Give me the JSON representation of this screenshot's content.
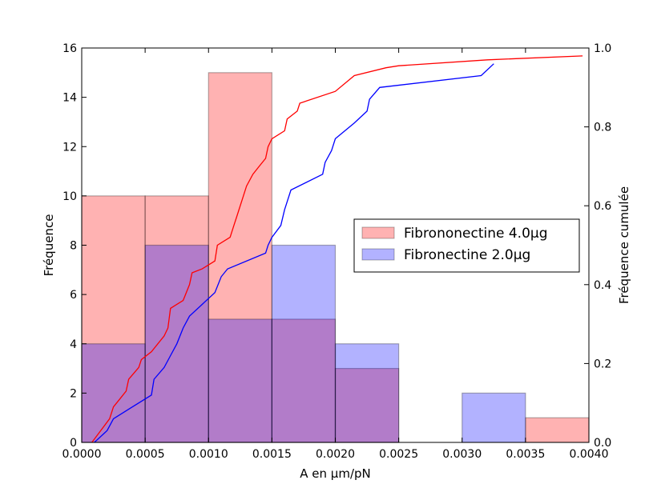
{
  "chart_data": {
    "type": "bar",
    "xlabel": "A en µm/pN",
    "ylabel": "Fréquence",
    "ylabel_right": "Fréquence cumulée",
    "xlim": [
      0.0,
      0.004
    ],
    "ylim": [
      0,
      16
    ],
    "ylim_right": [
      0.0,
      1.0
    ],
    "x_ticks": [
      "0.0000",
      "0.0005",
      "0.0010",
      "0.0015",
      "0.0020",
      "0.0025",
      "0.0030",
      "0.0035",
      "0.0040"
    ],
    "y_ticks": [
      "0",
      "2",
      "4",
      "6",
      "8",
      "10",
      "12",
      "14",
      "16"
    ],
    "y_ticks_right": [
      "0.0",
      "0.2",
      "0.4",
      "0.6",
      "0.8",
      "1.0"
    ],
    "bin_edges": [
      0.0,
      0.0005,
      0.001,
      0.0015,
      0.002,
      0.0025,
      0.003,
      0.0035,
      0.004
    ],
    "legend_position": "center-right",
    "series": [
      {
        "name": "Fibrononectine 4.0µg",
        "color": "#ff0000",
        "counts": [
          10,
          10,
          15,
          5,
          3,
          0,
          0,
          1
        ],
        "cumulative": [
          [
            8e-05,
            0.0
          ],
          [
            0.00022,
            0.06
          ],
          [
            0.00025,
            0.09
          ],
          [
            0.0003,
            0.11
          ],
          [
            0.00035,
            0.13
          ],
          [
            0.00037,
            0.16
          ],
          [
            0.00045,
            0.19
          ],
          [
            0.00047,
            0.21
          ],
          [
            0.00055,
            0.23
          ],
          [
            0.00065,
            0.27
          ],
          [
            0.00068,
            0.29
          ],
          [
            0.0007,
            0.34
          ],
          [
            0.0008,
            0.36
          ],
          [
            0.00085,
            0.4
          ],
          [
            0.00087,
            0.43
          ],
          [
            0.00095,
            0.44
          ],
          [
            0.00105,
            0.46
          ],
          [
            0.00107,
            0.5
          ],
          [
            0.00117,
            0.52
          ],
          [
            0.0012,
            0.55
          ],
          [
            0.00122,
            0.57
          ],
          [
            0.00127,
            0.62
          ],
          [
            0.0013,
            0.65
          ],
          [
            0.00135,
            0.68
          ],
          [
            0.0014,
            0.7
          ],
          [
            0.00145,
            0.72
          ],
          [
            0.00147,
            0.75
          ],
          [
            0.0015,
            0.77
          ],
          [
            0.0016,
            0.79
          ],
          [
            0.00162,
            0.82
          ],
          [
            0.0017,
            0.84
          ],
          [
            0.00172,
            0.86
          ],
          [
            0.002,
            0.89
          ],
          [
            0.00215,
            0.93
          ],
          [
            0.0024,
            0.95
          ],
          [
            0.0025,
            0.955
          ],
          [
            0.0032,
            0.97
          ],
          [
            0.00395,
            0.98
          ]
        ]
      },
      {
        "name": "Fibronectine 2.0µg",
        "color": "#0000ff",
        "counts": [
          4,
          8,
          5,
          8,
          4,
          0,
          2,
          0
        ],
        "cumulative": [
          [
            0.0001,
            0.0
          ],
          [
            0.0002,
            0.03
          ],
          [
            0.00025,
            0.06
          ],
          [
            0.0004,
            0.09
          ],
          [
            0.00055,
            0.12
          ],
          [
            0.00057,
            0.16
          ],
          [
            0.00065,
            0.19
          ],
          [
            0.0007,
            0.22
          ],
          [
            0.00075,
            0.25
          ],
          [
            0.0008,
            0.29
          ],
          [
            0.00085,
            0.32
          ],
          [
            0.00095,
            0.35
          ],
          [
            0.00105,
            0.38
          ],
          [
            0.0011,
            0.42
          ],
          [
            0.00115,
            0.44
          ],
          [
            0.00145,
            0.48
          ],
          [
            0.00147,
            0.5
          ],
          [
            0.0015,
            0.52
          ],
          [
            0.00157,
            0.55
          ],
          [
            0.0016,
            0.59
          ],
          [
            0.00165,
            0.64
          ],
          [
            0.0019,
            0.68
          ],
          [
            0.00192,
            0.71
          ],
          [
            0.00197,
            0.74
          ],
          [
            0.002,
            0.77
          ],
          [
            0.00215,
            0.81
          ],
          [
            0.00225,
            0.84
          ],
          [
            0.00227,
            0.87
          ],
          [
            0.00235,
            0.9
          ],
          [
            0.00315,
            0.93
          ],
          [
            0.00325,
            0.96
          ]
        ]
      }
    ]
  }
}
